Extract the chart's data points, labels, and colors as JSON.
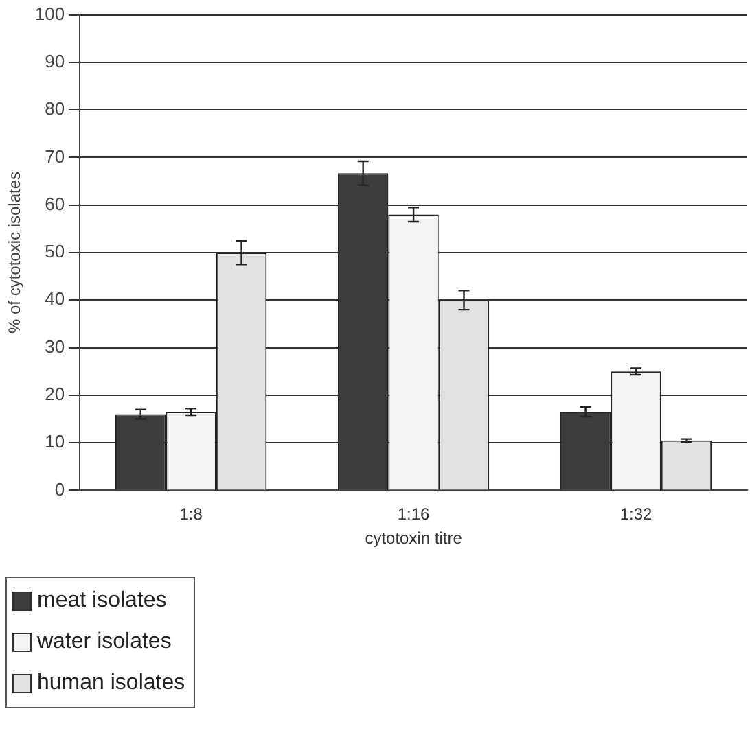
{
  "chart_data": {
    "type": "bar",
    "xlabel": "cytotoxin titre",
    "ylabel": "% of cytotoxic isolates",
    "categories": [
      "1:8",
      "1:16",
      "1:32"
    ],
    "series": [
      {
        "name": "meat isolates",
        "color": "#3c3c3c",
        "values": [
          16,
          66.7,
          16.5
        ],
        "errors": [
          1,
          2.5,
          1
        ]
      },
      {
        "name": "water isolates",
        "color": "#f4f4f4",
        "values": [
          16.5,
          58,
          25
        ],
        "errors": [
          0.7,
          1.5,
          0.7
        ]
      },
      {
        "name": "human isolates",
        "color": "#e2e2e2",
        "values": [
          50,
          40,
          10.5
        ],
        "errors": [
          2.5,
          2,
          0.3
        ]
      }
    ],
    "ylim": [
      0,
      100
    ],
    "yticks": [
      0,
      10,
      20,
      30,
      40,
      50,
      60,
      70,
      80,
      90,
      100
    ],
    "grid": "y",
    "legend": "bottom left"
  }
}
